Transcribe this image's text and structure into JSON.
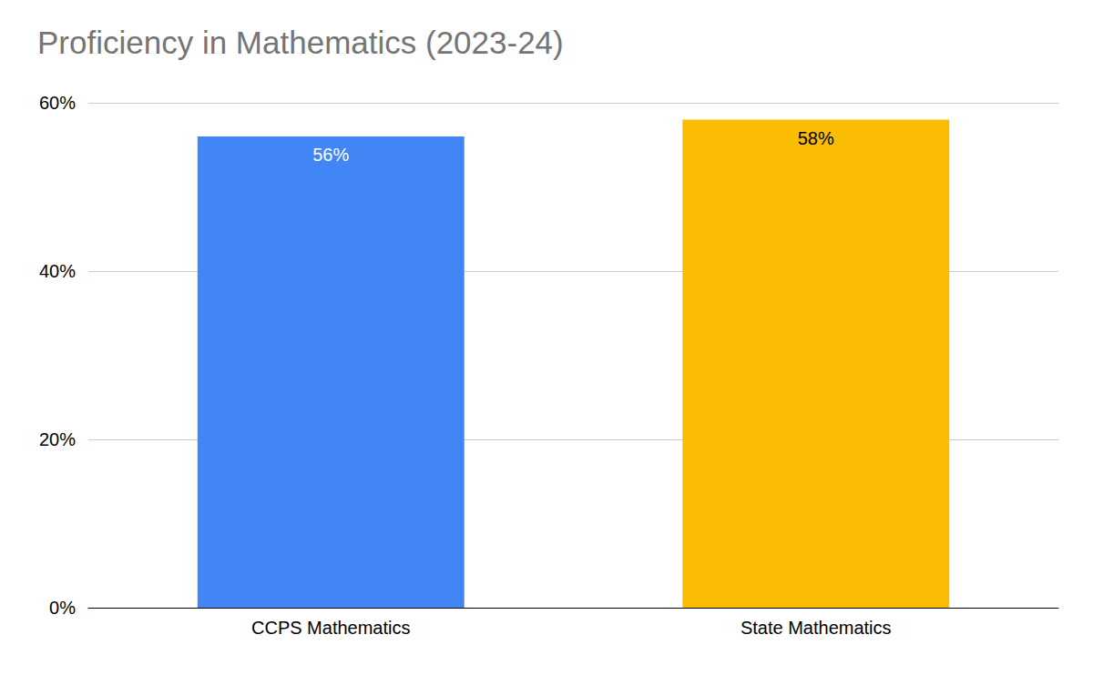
{
  "chart_data": {
    "type": "bar",
    "title": "Proficiency in Mathematics (2023-24)",
    "categories": [
      "CCPS Mathematics",
      "State Mathematics"
    ],
    "values": [
      56,
      58
    ],
    "value_labels": [
      "56%",
      "58%"
    ],
    "colors": [
      "#4285f4",
      "#fbbc04"
    ],
    "ylim": [
      0,
      60
    ],
    "yticks": [
      {
        "value": 0,
        "label": "0%"
      },
      {
        "value": 20,
        "label": "20%"
      },
      {
        "value": 40,
        "label": "40%"
      },
      {
        "value": 60,
        "label": "60%"
      }
    ],
    "grid": true,
    "data_labels": true
  }
}
